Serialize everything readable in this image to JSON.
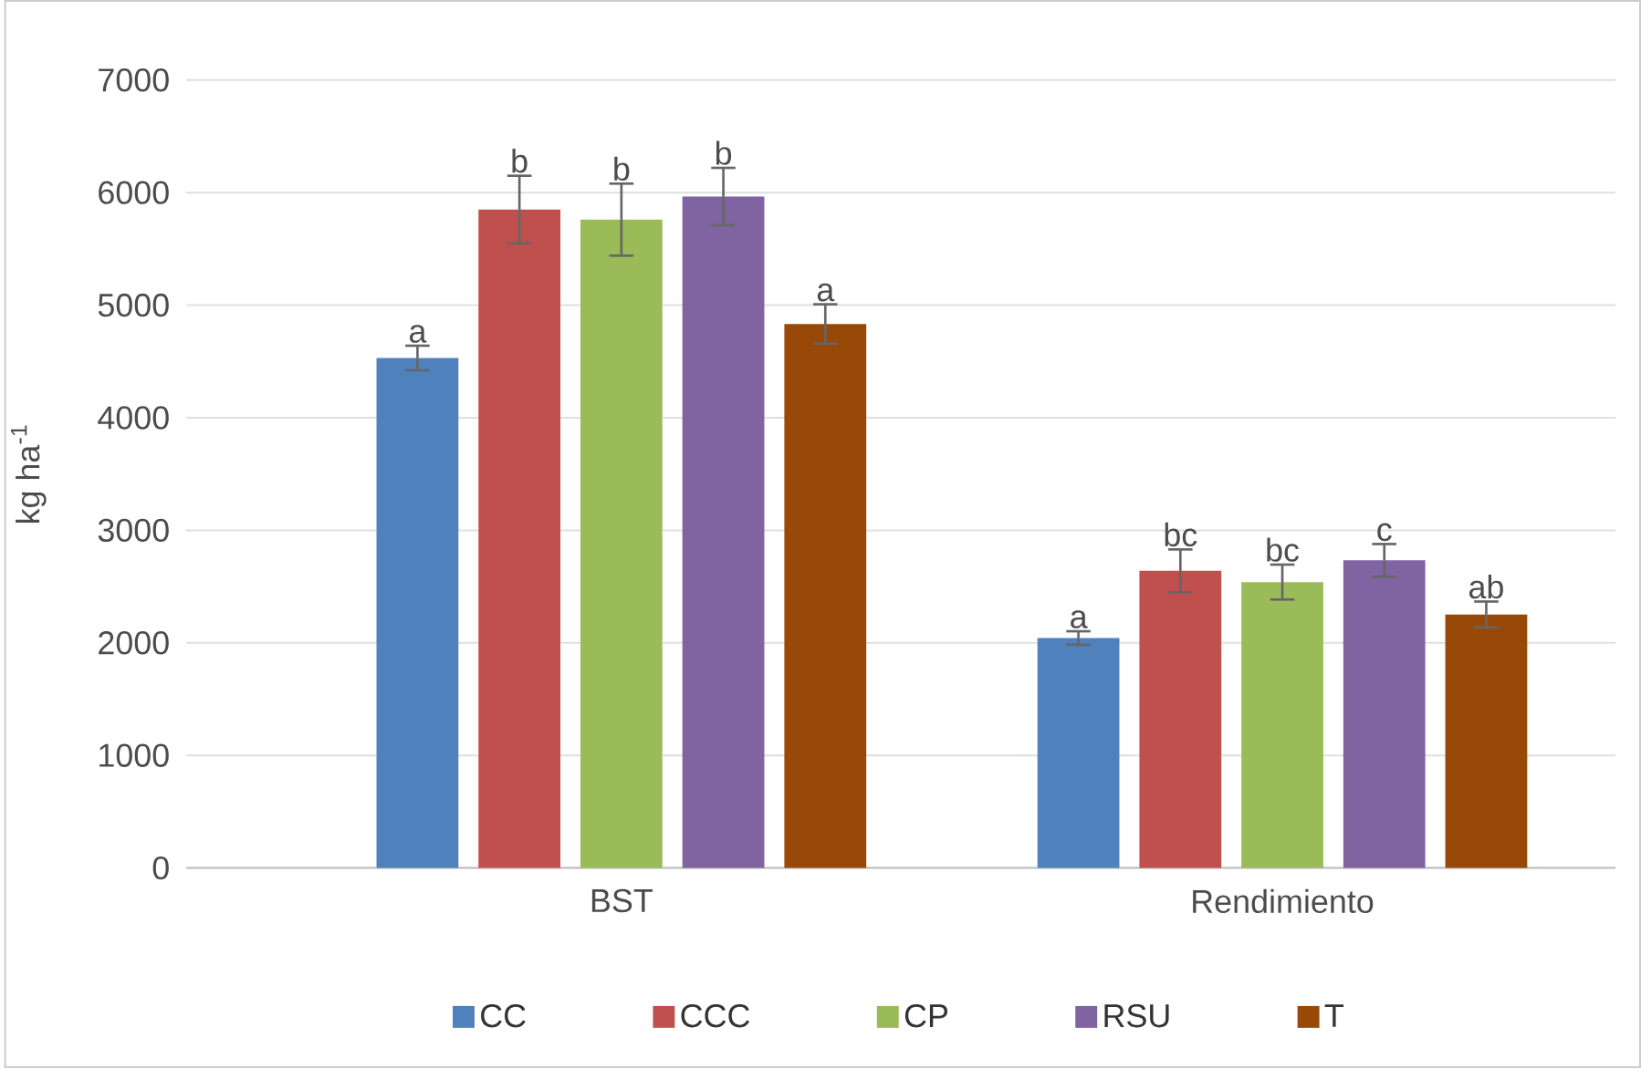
{
  "chart_data": {
    "type": "bar",
    "ylabel": "kg ha$^{-1}$",
    "categories": [
      "BST",
      "Rendimiento"
    ],
    "series": [
      {
        "name": "CC",
        "color": "#4f81bd",
        "values": [
          4530,
          2043
        ],
        "errors": [
          110,
          60
        ],
        "value_labels": [
          "a",
          "a"
        ]
      },
      {
        "name": "CCC",
        "color": "#c0504d",
        "values": [
          5850,
          2640
        ],
        "errors": [
          300,
          190
        ],
        "value_labels": [
          "b",
          "bc"
        ]
      },
      {
        "name": "CP",
        "color": "#9bbb59",
        "values": [
          5760,
          2540
        ],
        "errors": [
          320,
          155
        ],
        "value_labels": [
          "b",
          "bc"
        ]
      },
      {
        "name": "RSU",
        "color": "#8064a2",
        "values": [
          5965,
          2733
        ],
        "errors": [
          255,
          145
        ],
        "value_labels": [
          "b",
          "c"
        ]
      },
      {
        "name": "T",
        "color": "#984807",
        "values": [
          4833,
          2252
        ],
        "errors": [
          175,
          115
        ],
        "value_labels": [
          "a",
          "ab"
        ]
      }
    ],
    "ylim": [
      0,
      7000
    ],
    "yticks": [
      0,
      1000,
      2000,
      3000,
      4000,
      5000,
      6000,
      7000
    ],
    "grid": "y",
    "legend": "bottom"
  }
}
